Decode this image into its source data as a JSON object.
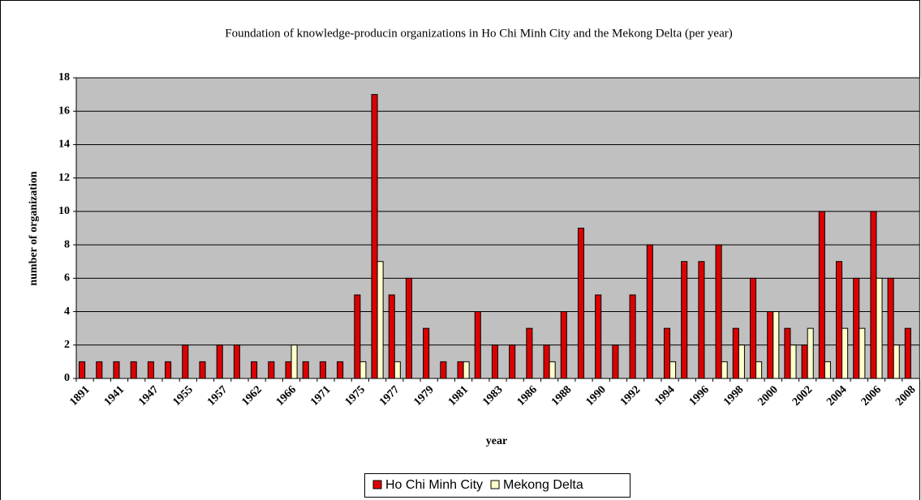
{
  "chart_data": {
    "type": "bar",
    "title": "Foundation of knowledge-producin organizations in Ho Chi Minh City and the Mekong Delta (per year)",
    "x_label": "year",
    "y_label": "number of organization",
    "categories": [
      "1891",
      null,
      "1941",
      null,
      "1947",
      null,
      "1955",
      null,
      "1957",
      null,
      "1962",
      null,
      "1966",
      null,
      "1971",
      null,
      "1975",
      null,
      "1977",
      null,
      "1979",
      null,
      "1981",
      null,
      "1983",
      null,
      "1986",
      null,
      "1988",
      null,
      "1990",
      null,
      "1992",
      null,
      "1994",
      null,
      "1996",
      null,
      "1998",
      null,
      "2000",
      null,
      "2002",
      null,
      "2004",
      null,
      "2006",
      null,
      "2008"
    ],
    "series": [
      {
        "name": "Ho Chi Minh City",
        "color": "#dd0000",
        "values": [
          1,
          1,
          1,
          1,
          1,
          1,
          2,
          1,
          2,
          2,
          1,
          1,
          1,
          1,
          1,
          1,
          5,
          17,
          5,
          6,
          3,
          1,
          1,
          4,
          2,
          2,
          3,
          2,
          4,
          9,
          5,
          2,
          5,
          8,
          3,
          7,
          7,
          8,
          3,
          6,
          4,
          3,
          2,
          10,
          7,
          6,
          10,
          6,
          3
        ]
      },
      {
        "name": "Mekong Delta",
        "color": "#ffffcc",
        "values": [
          0,
          0,
          0,
          0,
          0,
          0,
          0,
          0,
          0,
          0,
          0,
          0,
          2,
          0,
          0,
          0,
          1,
          7,
          1,
          0,
          0,
          0,
          1,
          0,
          0,
          0,
          0,
          1,
          0,
          0,
          0,
          0,
          0,
          0,
          1,
          0,
          0,
          1,
          2,
          1,
          4,
          2,
          3,
          1,
          3,
          3,
          6,
          2,
          0
        ]
      }
    ],
    "ylim": [
      0,
      18
    ],
    "yticks": [
      0,
      2,
      4,
      6,
      8,
      10,
      12,
      14,
      16,
      18
    ],
    "grid": true,
    "legend": "bottom"
  }
}
